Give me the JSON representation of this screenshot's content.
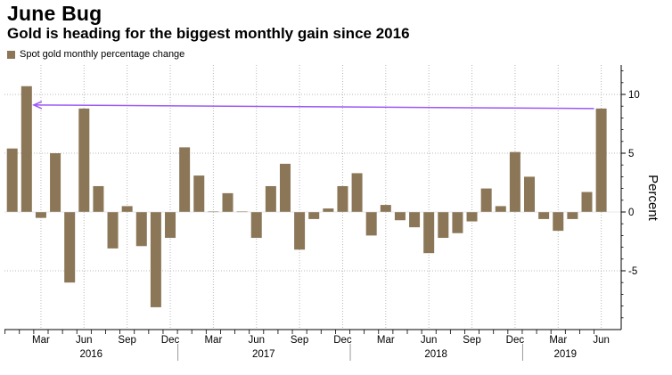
{
  "title": "June Bug",
  "subtitle": "Gold is heading for the biggest monthly gain since 2016",
  "chart_data": {
    "type": "bar",
    "series": [
      {
        "name": "Spot gold monthly percentage change",
        "color": "#8b7757",
        "values": [
          5.4,
          10.7,
          -0.5,
          5.0,
          -6.0,
          8.8,
          2.2,
          -3.1,
          0.5,
          -2.9,
          -8.1,
          -2.2,
          5.5,
          3.1,
          0.05,
          1.6,
          0.05,
          -2.2,
          2.2,
          4.1,
          -3.2,
          -0.6,
          0.3,
          2.2,
          3.3,
          -2.0,
          0.6,
          -0.7,
          -1.3,
          -3.5,
          -2.2,
          -1.8,
          -0.8,
          2.0,
          0.5,
          5.1,
          3.0,
          -0.6,
          -1.6,
          -0.6,
          1.7,
          8.8
        ]
      }
    ],
    "start_month": "2016-01",
    "x_tick_labels": [
      {
        "index": 2,
        "label": "Mar"
      },
      {
        "index": 5,
        "label": "Jun"
      },
      {
        "index": 8,
        "label": "Sep"
      },
      {
        "index": 11,
        "label": "Dec"
      },
      {
        "index": 14,
        "label": "Mar"
      },
      {
        "index": 17,
        "label": "Jun"
      },
      {
        "index": 20,
        "label": "Sep"
      },
      {
        "index": 23,
        "label": "Dec"
      },
      {
        "index": 26,
        "label": "Mar"
      },
      {
        "index": 29,
        "label": "Jun"
      },
      {
        "index": 32,
        "label": "Sep"
      },
      {
        "index": 35,
        "label": "Dec"
      },
      {
        "index": 38,
        "label": "Mar"
      },
      {
        "index": 41,
        "label": "Jun"
      }
    ],
    "year_labels": [
      {
        "index": 5,
        "label": "2016"
      },
      {
        "index": 17,
        "label": "2017"
      },
      {
        "index": 29,
        "label": "2018"
      },
      {
        "index": 38,
        "label": "2019"
      }
    ],
    "y_ticks": [
      10,
      5,
      0,
      -5
    ],
    "y_tick_labels": [
      "10",
      "5",
      "0",
      "-5"
    ],
    "ylim": [
      -10,
      12.5
    ],
    "ylabel": "Percent",
    "annotation": {
      "type": "arrow",
      "from_index": 40.5,
      "to_index": 1.5,
      "from_value": 8.8,
      "to_value": 9.1,
      "color": "#9b59f5"
    },
    "grid": true,
    "legend_position": "top-left"
  }
}
